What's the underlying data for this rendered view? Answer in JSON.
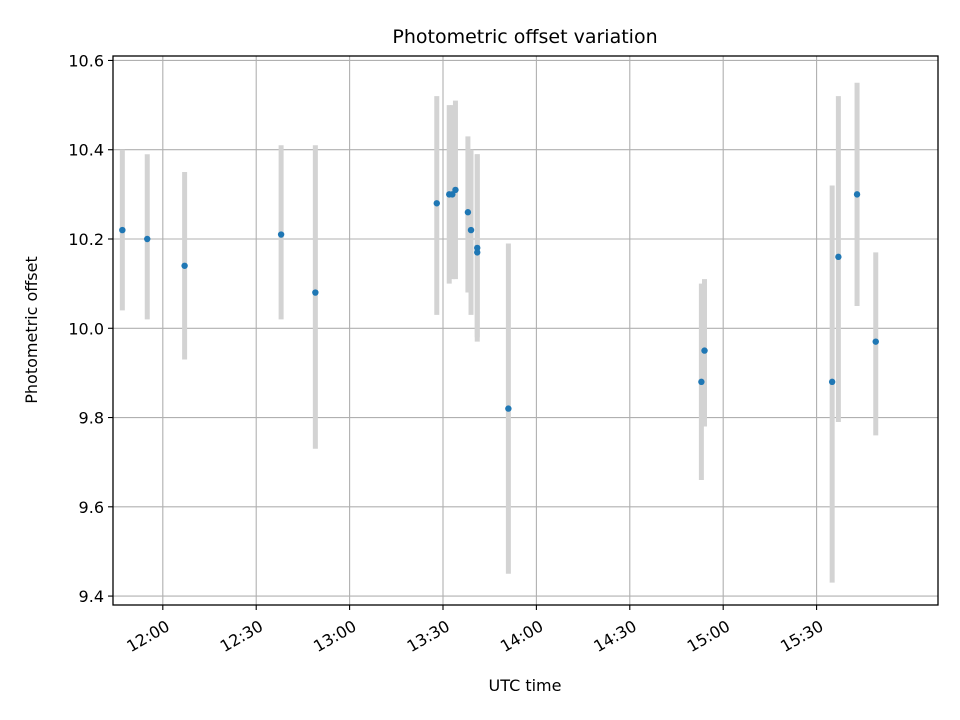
{
  "chart_data": {
    "type": "scatter",
    "title": "Photometric offset variation",
    "xlabel": "UTC time",
    "ylabel": "Photometric offset",
    "grid": true,
    "x_tick_labels": [
      "12:00",
      "12:30",
      "13:00",
      "13:30",
      "14:00",
      "14:30",
      "15:00",
      "15:30"
    ],
    "y_tick_labels": [
      "9.4",
      "9.6",
      "9.8",
      "10.0",
      "10.2",
      "10.4",
      "10.6"
    ],
    "xlim": [
      "11:44",
      "16:09"
    ],
    "ylim": [
      9.38,
      10.61
    ],
    "colors": {
      "point": "#1f77b4",
      "errorbar": "#d3d3d3",
      "grid": "#b0b0b0"
    },
    "points": [
      {
        "x": "11:47",
        "y": 10.22,
        "err_low": 10.04,
        "err_high": 10.4
      },
      {
        "x": "11:55",
        "y": 10.2,
        "err_low": 10.02,
        "err_high": 10.39
      },
      {
        "x": "12:07",
        "y": 10.14,
        "err_low": 9.93,
        "err_high": 10.35
      },
      {
        "x": "12:38",
        "y": 10.21,
        "err_low": 10.02,
        "err_high": 10.41
      },
      {
        "x": "12:49",
        "y": 10.08,
        "err_low": 9.73,
        "err_high": 10.41
      },
      {
        "x": "13:28",
        "y": 10.28,
        "err_low": 10.03,
        "err_high": 10.52
      },
      {
        "x": "13:32",
        "y": 10.3,
        "err_low": 10.1,
        "err_high": 10.5
      },
      {
        "x": "13:33",
        "y": 10.3,
        "err_low": 10.11,
        "err_high": 10.5
      },
      {
        "x": "13:34",
        "y": 10.31,
        "err_low": 10.11,
        "err_high": 10.51
      },
      {
        "x": "13:38",
        "y": 10.26,
        "err_low": 10.08,
        "err_high": 10.43
      },
      {
        "x": "13:39",
        "y": 10.22,
        "err_low": 10.03,
        "err_high": 10.4
      },
      {
        "x": "13:41",
        "y": 10.17,
        "err_low": 9.97,
        "err_high": 10.39
      },
      {
        "x": "13:41",
        "y": 10.18,
        "err_low": 9.98,
        "err_high": 10.39
      },
      {
        "x": "13:51",
        "y": 9.82,
        "err_low": 9.45,
        "err_high": 10.19
      },
      {
        "x": "14:53",
        "y": 9.88,
        "err_low": 9.66,
        "err_high": 10.1
      },
      {
        "x": "14:54",
        "y": 9.95,
        "err_low": 9.78,
        "err_high": 10.11
      },
      {
        "x": "15:35",
        "y": 9.88,
        "err_low": 9.43,
        "err_high": 10.32
      },
      {
        "x": "15:37",
        "y": 10.16,
        "err_low": 9.79,
        "err_high": 10.52
      },
      {
        "x": "15:43",
        "y": 10.3,
        "err_low": 10.05,
        "err_high": 10.55
      },
      {
        "x": "15:49",
        "y": 9.97,
        "err_low": 9.76,
        "err_high": 10.17
      }
    ]
  }
}
